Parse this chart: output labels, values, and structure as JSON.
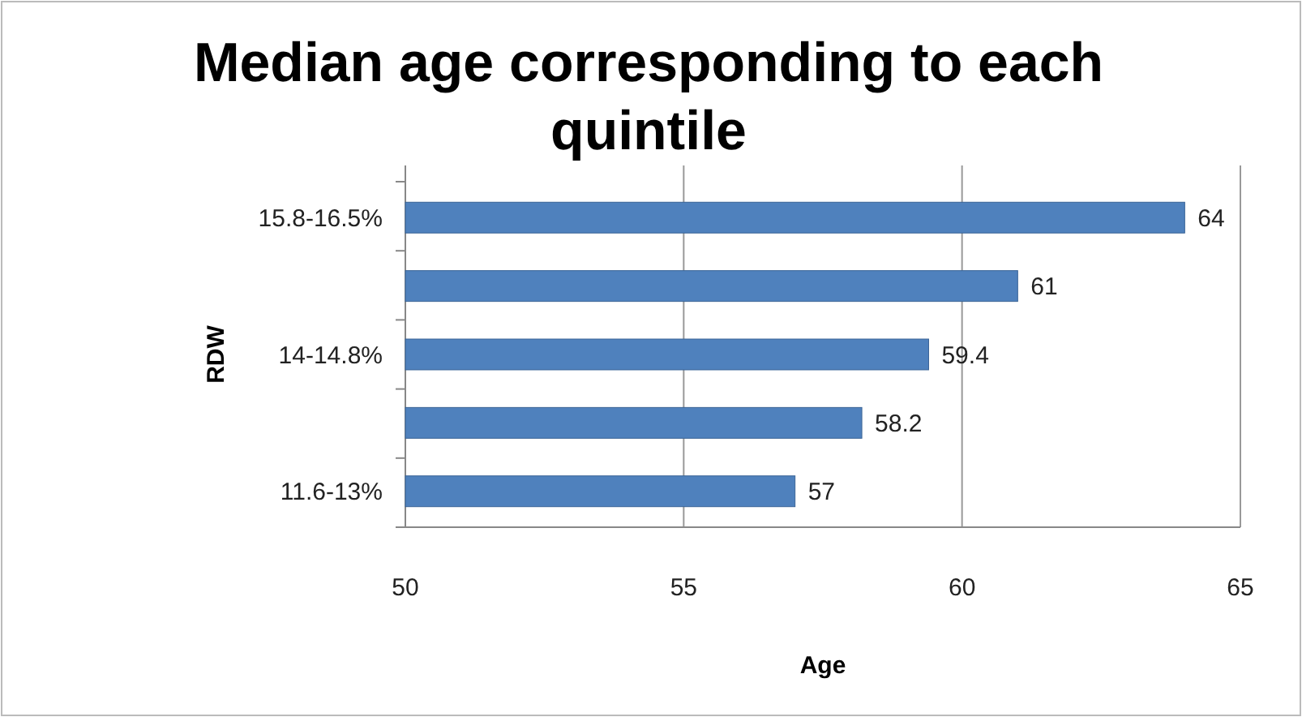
{
  "chart_data": {
    "type": "bar",
    "orientation": "horizontal",
    "title": "Median age corresponding to each quintile",
    "xlabel": "Age",
    "ylabel": "RDW",
    "categories": [
      "15.8-16.5%",
      null,
      "14-14.8%",
      null,
      "11.6-13%"
    ],
    "values": [
      64,
      61,
      59.4,
      58.2,
      57
    ],
    "color": "#4f81bd",
    "xlim": [
      50,
      65
    ],
    "xticks": [
      50,
      55,
      60,
      65
    ],
    "grid": "x",
    "data_labels": true
  }
}
